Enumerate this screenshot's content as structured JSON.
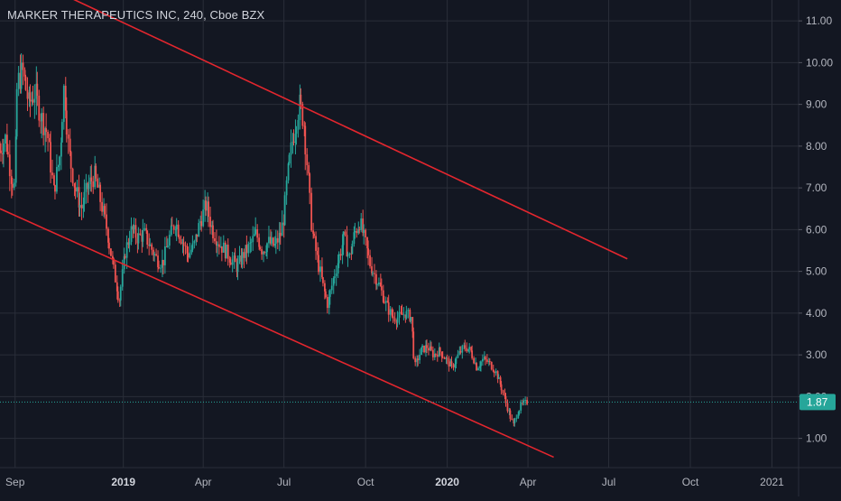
{
  "title": "MARKER THERAPEUTICS INC, 240, Cboe BZX",
  "colors": {
    "background": "#131722",
    "grid": "#2a2e39",
    "axis_text": "#b2b5be",
    "up": "#26a69a",
    "down": "#ef5350",
    "trendline": "#e3262e",
    "last_price": "#26a69a"
  },
  "chart_data": {
    "type": "candlestick",
    "title": "MARKER THERAPEUTICS INC, 240, Cboe BZX",
    "xlabel": "",
    "ylabel": "",
    "ylim": [
      0.3,
      11.5
    ],
    "x_range": [
      "2018-08-15",
      "2021-01-31"
    ],
    "y_ticks": [
      "1.00",
      "2.00",
      "3.00",
      "4.00",
      "5.00",
      "6.00",
      "7.00",
      "8.00",
      "9.00",
      "10.00",
      "11.00"
    ],
    "x_ticks": [
      {
        "label": "Sep",
        "date": "2018-09-01",
        "bold": false
      },
      {
        "label": "2019",
        "date": "2019-01-01",
        "bold": true
      },
      {
        "label": "Apr",
        "date": "2019-04-01",
        "bold": false
      },
      {
        "label": "Jul",
        "date": "2019-07-01",
        "bold": false
      },
      {
        "label": "Oct",
        "date": "2019-10-01",
        "bold": false
      },
      {
        "label": "2020",
        "date": "2020-01-01",
        "bold": true
      },
      {
        "label": "Apr",
        "date": "2020-04-01",
        "bold": false
      },
      {
        "label": "Jul",
        "date": "2020-07-01",
        "bold": false
      },
      {
        "label": "Oct",
        "date": "2020-10-01",
        "bold": false
      },
      {
        "label": "2021",
        "date": "2021-01-01",
        "bold": false
      }
    ],
    "last_price": "1.87",
    "price_path": [
      [
        "2018-08-15",
        7.9
      ],
      [
        "2018-08-22",
        8.2
      ],
      [
        "2018-08-28",
        7.3
      ],
      [
        "2018-09-01",
        7.0
      ],
      [
        "2018-09-04",
        9.5
      ],
      [
        "2018-09-10",
        9.8
      ],
      [
        "2018-09-17",
        9.0
      ],
      [
        "2018-09-24",
        9.3
      ],
      [
        "2018-10-01",
        8.7
      ],
      [
        "2018-10-08",
        8.3
      ],
      [
        "2018-10-15",
        6.9
      ],
      [
        "2018-10-22",
        7.8
      ],
      [
        "2018-10-27",
        9.5
      ],
      [
        "2018-11-01",
        7.9
      ],
      [
        "2018-11-08",
        7.0
      ],
      [
        "2018-11-15",
        6.5
      ],
      [
        "2018-11-22",
        7.0
      ],
      [
        "2018-11-30",
        7.3
      ],
      [
        "2018-12-07",
        6.7
      ],
      [
        "2018-12-14",
        6.0
      ],
      [
        "2018-12-21",
        5.1
      ],
      [
        "2018-12-28",
        4.3
      ],
      [
        "2019-01-04",
        5.5
      ],
      [
        "2019-01-11",
        6.0
      ],
      [
        "2019-01-18",
        5.8
      ],
      [
        "2019-01-25",
        5.9
      ],
      [
        "2019-02-01",
        5.6
      ],
      [
        "2019-02-08",
        5.3
      ],
      [
        "2019-02-15",
        5.2
      ],
      [
        "2019-02-22",
        5.8
      ],
      [
        "2019-03-01",
        6.2
      ],
      [
        "2019-03-08",
        5.8
      ],
      [
        "2019-03-15",
        5.4
      ],
      [
        "2019-03-22",
        5.6
      ],
      [
        "2019-03-29",
        6.2
      ],
      [
        "2019-04-05",
        6.6
      ],
      [
        "2019-04-12",
        6.0
      ],
      [
        "2019-04-19",
        5.7
      ],
      [
        "2019-04-26",
        5.5
      ],
      [
        "2019-05-03",
        5.3
      ],
      [
        "2019-05-10",
        5.1
      ],
      [
        "2019-05-17",
        5.4
      ],
      [
        "2019-05-24",
        5.6
      ],
      [
        "2019-05-31",
        5.9
      ],
      [
        "2019-06-07",
        5.5
      ],
      [
        "2019-06-14",
        5.7
      ],
      [
        "2019-06-21",
        5.6
      ],
      [
        "2019-06-28",
        5.9
      ],
      [
        "2019-07-02",
        6.4
      ],
      [
        "2019-07-05",
        7.2
      ],
      [
        "2019-07-10",
        8.0
      ],
      [
        "2019-07-15",
        8.6
      ],
      [
        "2019-07-19",
        9.0
      ],
      [
        "2019-07-24",
        8.6
      ],
      [
        "2019-07-29",
        7.2
      ],
      [
        "2019-08-02",
        6.0
      ],
      [
        "2019-08-08",
        5.3
      ],
      [
        "2019-08-15",
        4.6
      ],
      [
        "2019-08-20",
        4.2
      ],
      [
        "2019-08-26",
        4.8
      ],
      [
        "2019-09-01",
        5.3
      ],
      [
        "2019-09-07",
        5.8
      ],
      [
        "2019-09-13",
        5.3
      ],
      [
        "2019-09-19",
        5.9
      ],
      [
        "2019-09-25",
        6.2
      ],
      [
        "2019-10-01",
        5.7
      ],
      [
        "2019-10-06",
        5.2
      ],
      [
        "2019-10-12",
        4.9
      ],
      [
        "2019-10-18",
        4.6
      ],
      [
        "2019-10-25",
        4.2
      ],
      [
        "2019-11-01",
        3.9
      ],
      [
        "2019-11-08",
        3.9
      ],
      [
        "2019-11-15",
        4.0
      ],
      [
        "2019-11-22",
        3.9
      ],
      [
        "2019-11-26",
        2.7
      ],
      [
        "2019-12-03",
        3.1
      ],
      [
        "2019-12-10",
        3.2
      ],
      [
        "2019-12-17",
        3.0
      ],
      [
        "2019-12-24",
        3.1
      ],
      [
        "2019-12-31",
        2.9
      ],
      [
        "2020-01-07",
        2.7
      ],
      [
        "2020-01-14",
        3.0
      ],
      [
        "2020-01-21",
        3.2
      ],
      [
        "2020-01-28",
        3.1
      ],
      [
        "2020-02-04",
        2.7
      ],
      [
        "2020-02-11",
        2.9
      ],
      [
        "2020-02-18",
        2.8
      ],
      [
        "2020-02-25",
        2.6
      ],
      [
        "2020-03-03",
        2.2
      ],
      [
        "2020-03-10",
        1.7
      ],
      [
        "2020-03-16",
        1.3
      ],
      [
        "2020-03-20",
        1.6
      ],
      [
        "2020-03-25",
        1.8
      ],
      [
        "2020-03-31",
        1.87
      ]
    ],
    "trendlines": [
      {
        "name": "upper",
        "from": {
          "date": "2018-07-20",
          "price": 12.6
        },
        "to": {
          "date": "2020-07-22",
          "price": 5.3
        }
      },
      {
        "name": "lower",
        "from": {
          "date": "2018-08-15",
          "price": 6.5
        },
        "to": {
          "date": "2020-04-30",
          "price": 0.55
        }
      }
    ]
  }
}
